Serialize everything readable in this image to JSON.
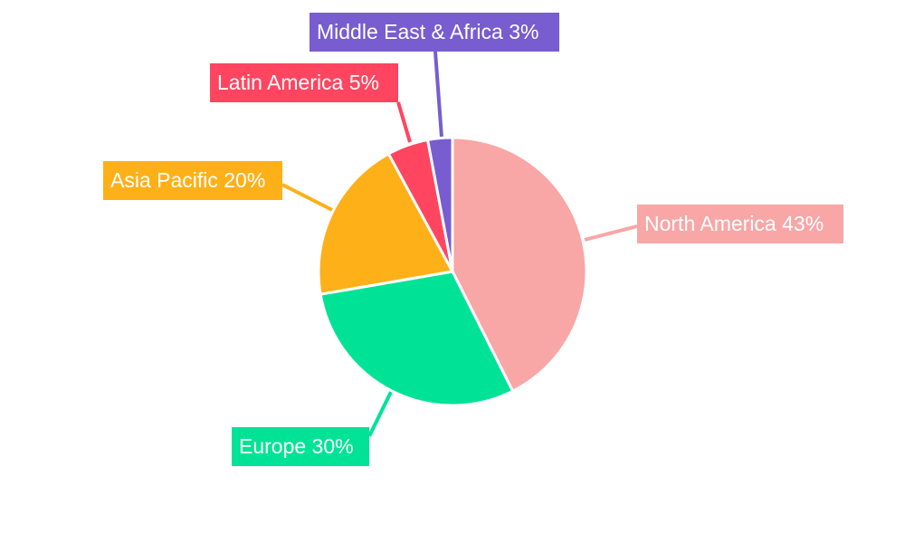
{
  "chart_data": {
    "type": "pie",
    "title": "",
    "start_angle_deg": 0,
    "direction": "clockwise",
    "slices": [
      {
        "label": "North America",
        "value": 43,
        "display": "North America 43%",
        "color": "#F9A6A6"
      },
      {
        "label": "Europe",
        "value": 30,
        "display": "Europe 30%",
        "color": "#00E396"
      },
      {
        "label": "Asia Pacific",
        "value": 20,
        "display": "Asia Pacific 20%",
        "color": "#FEB019"
      },
      {
        "label": "Latin America",
        "value": 5,
        "display": "Latin America 5%",
        "color": "#FF4560"
      },
      {
        "label": "Middle East & Africa",
        "value": 3,
        "display": "Middle East & Africa 3%",
        "color": "#775DD0"
      }
    ]
  }
}
